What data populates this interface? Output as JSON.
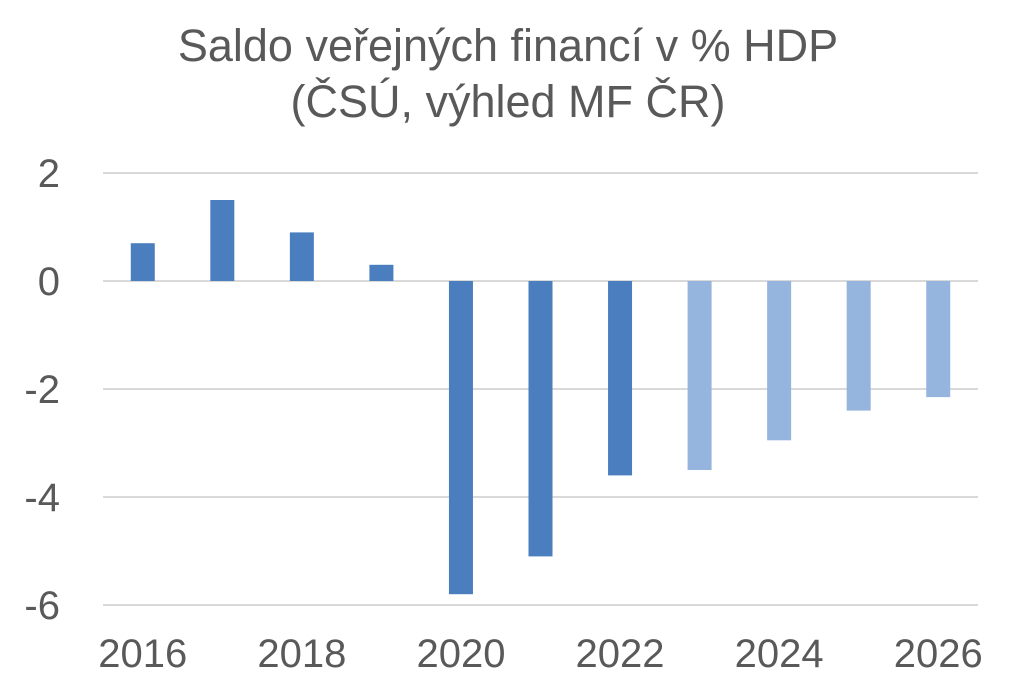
{
  "chart_data": {
    "type": "bar",
    "title": "Saldo veřejných financí v % HDP",
    "subtitle": "(ČSÚ, výhled MF ČR)",
    "xlabel": "",
    "ylabel": "",
    "categories": [
      "2016",
      "2017",
      "2018",
      "2019",
      "2020",
      "2021",
      "2022",
      "2023",
      "2024",
      "2025",
      "2026"
    ],
    "values": [
      0.7,
      1.5,
      0.9,
      0.3,
      -5.8,
      -5.1,
      -3.6,
      -3.5,
      -2.95,
      -2.4,
      -2.15
    ],
    "forecast_from": "2023",
    "x_tick_labels": [
      "2016",
      "2018",
      "2020",
      "2022",
      "2024",
      "2026"
    ],
    "y_tick_labels": [
      "2",
      "0",
      "-2",
      "-4",
      "-6"
    ],
    "ylim": [
      -6,
      2
    ],
    "grid": true,
    "legend": "none",
    "colors": {
      "actual": "#4a7ebf",
      "forecast": "#95b5df",
      "grid": "#d9d9d9",
      "text": "#595959"
    }
  }
}
